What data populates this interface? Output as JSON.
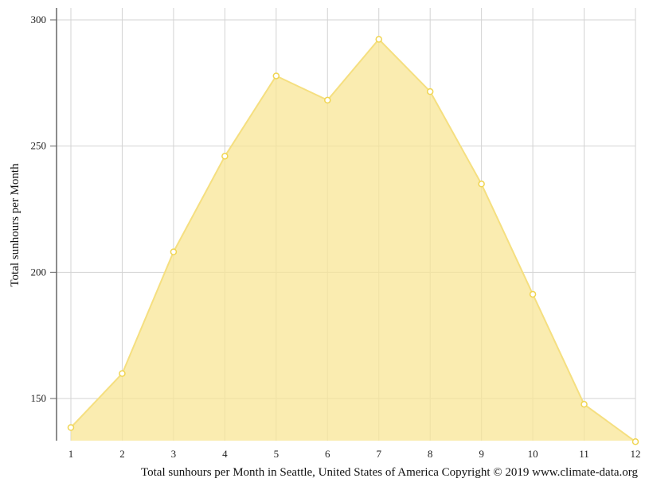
{
  "chart_data": {
    "type": "area",
    "ylabel": "Total sunhours per Month",
    "caption": "Total sunhours per Month in Seattle, United States of America Copyright © 2019 www.climate-data.org",
    "x": [
      1,
      2,
      3,
      4,
      5,
      6,
      7,
      8,
      9,
      10,
      11,
      12
    ],
    "x_tick_labels": [
      "1",
      "2",
      "3",
      "4",
      "5",
      "6",
      "7",
      "8",
      "9",
      "10",
      "11",
      "12"
    ],
    "series": [
      {
        "values": [
          138.5,
          159.9,
          208.1,
          246.0,
          277.8,
          268.2,
          292.3,
          271.6,
          235.0,
          191.3,
          147.7,
          132.9
        ]
      }
    ],
    "y_ticks": [
      150,
      200,
      250,
      300
    ],
    "y_tick_labels": [
      "150",
      "200",
      "250",
      "300"
    ],
    "xlim": [
      1,
      12
    ],
    "ylim": [
      132.9,
      304.5
    ],
    "grid": true,
    "colors": {
      "fill": "#f8e696",
      "line": "#f5df80",
      "marker_stroke": "#f0d552",
      "marker_fill": "#ffffff",
      "grid": "#d3d3d3",
      "axis": "#666666"
    }
  }
}
